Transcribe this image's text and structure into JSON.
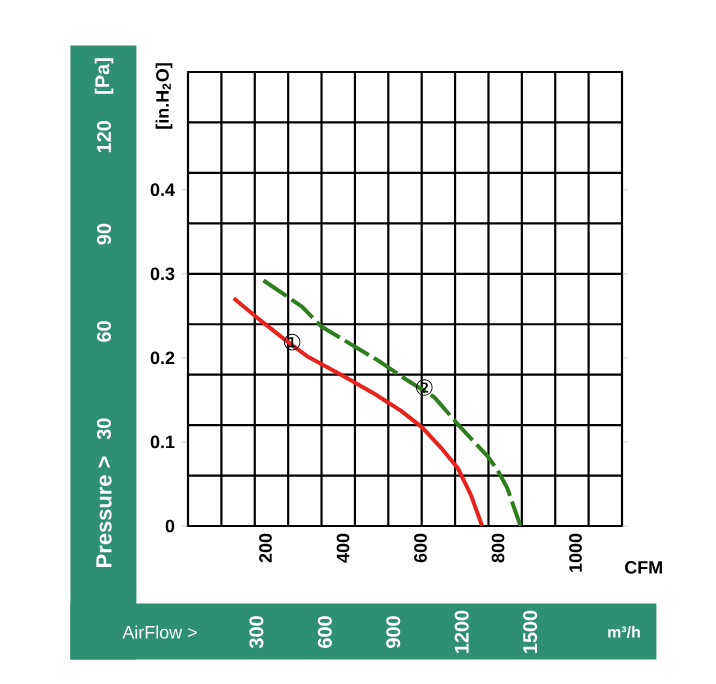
{
  "chart_data": {
    "type": "line",
    "xlabel": "CFM",
    "ylabel": "[in.H$_{2}$O]",
    "y2label": "[Pa]",
    "x2label": "m³/h",
    "xlim": [
      0,
      1120
    ],
    "ylim": [
      0,
      0.54
    ],
    "y2lim": [
      0,
      140
    ],
    "x2lim": [
      0,
      1903
    ],
    "xticks": [
      {
        "value": 86.2,
        "label": null
      },
      {
        "value": 172.3,
        "label": null
      },
      {
        "value": 258.5,
        "label": null
      },
      {
        "value": 344.6,
        "label": null
      },
      {
        "value": 430.8,
        "label": null
      },
      {
        "value": 516.9,
        "label": null
      },
      {
        "value": 603.1,
        "label": null
      },
      {
        "value": 689.2,
        "label": null
      },
      {
        "value": 775.4,
        "label": null
      },
      {
        "value": 861.5,
        "label": null
      },
      {
        "value": 947.7,
        "label": null
      },
      {
        "value": 1033.8,
        "label": null
      },
      200,
      400,
      600,
      800,
      1000
    ],
    "yticks": [
      {
        "value": 0.06,
        "label": null
      },
      {
        "value": 0.12,
        "label": null
      },
      {
        "value": 0.18,
        "label": null
      },
      {
        "value": 0.24,
        "label": null
      },
      {
        "value": 0.3,
        "label": null
      },
      {
        "value": 0.36,
        "label": null
      },
      {
        "value": 0.42,
        "label": null
      },
      {
        "value": 0.48,
        "label": null
      },
      0,
      0.1,
      0.2,
      0.3,
      0.4
    ],
    "y2ticks": [
      30,
      60,
      90,
      120
    ],
    "x2ticks": [
      300,
      600,
      900,
      1200,
      1500
    ],
    "grid": true,
    "marker": "none",
    "series": [
      {
        "color": "#e8231f",
        "line_style": "solid",
        "x": [
          118,
          183,
          263,
          311,
          402,
          482,
          550,
          605,
          653,
          696,
          730,
          759
        ],
        "values": [
          0.271,
          0.246,
          0.217,
          0.201,
          0.178,
          0.157,
          0.137,
          0.117,
          0.093,
          0.069,
          0.037,
          0
        ]
      },
      {
        "color": "#2e7d1e",
        "line_style": "dashed",
        "x": [
          195,
          294,
          345,
          490,
          567,
          636,
          704,
          773,
          798,
          824,
          858
        ],
        "values": [
          0.292,
          0.261,
          0.237,
          0.197,
          0.173,
          0.153,
          0.117,
          0.083,
          0.067,
          0.045,
          0
        ]
      }
    ],
    "annotations": [
      {
        "text": "①",
        "x": 303,
        "y": 0.205
      },
      {
        "text": "②",
        "x": 644,
        "y": 0.151
      },
      "Pressure >",
      "AirFlow >"
    ]
  }
}
